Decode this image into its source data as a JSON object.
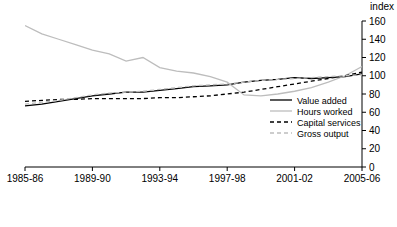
{
  "chart_data": {
    "type": "line",
    "y_label": "index",
    "categories": [
      "1985-86",
      null,
      null,
      null,
      "1989-90",
      null,
      null,
      null,
      "1993-94",
      null,
      null,
      null,
      "1997-98",
      null,
      null,
      null,
      "2001-02",
      null,
      null,
      null,
      "2005-06"
    ],
    "series": [
      {
        "name": "Value added",
        "color": "#000000",
        "line_style": "solid",
        "values": [
          67,
          69,
          72,
          75,
          78,
          80,
          82,
          82,
          84,
          86,
          88,
          89,
          90,
          93,
          95,
          96,
          98,
          97,
          98,
          99,
          102
        ]
      },
      {
        "name": "Hours worked",
        "color": "#bdbdbd",
        "line_style": "solid",
        "values": [
          155,
          146,
          140,
          134,
          128,
          124,
          116,
          120,
          109,
          105,
          103,
          99,
          93,
          79,
          78,
          80,
          83,
          87,
          93,
          100,
          110
        ]
      },
      {
        "name": "Capital services",
        "color": "#000000",
        "line_style": "dashed",
        "values": [
          72,
          73,
          74,
          74,
          75,
          75,
          75,
          75,
          76,
          76,
          77,
          78,
          80,
          82,
          85,
          88,
          91,
          94,
          97,
          100,
          104
        ]
      },
      {
        "name": "Gross output",
        "color": "#bdbdbd",
        "line_style": "dashed",
        "values": [
          69,
          71,
          73,
          76,
          79,
          81,
          82,
          83,
          85,
          87,
          89,
          90,
          91,
          93,
          95,
          96,
          97,
          98,
          99,
          100,
          101
        ]
      }
    ],
    "ylim": [
      0,
      160
    ],
    "yticks": [
      0,
      20,
      40,
      60,
      80,
      100,
      120,
      140,
      160
    ],
    "legend": "lower right",
    "grid": false
  }
}
